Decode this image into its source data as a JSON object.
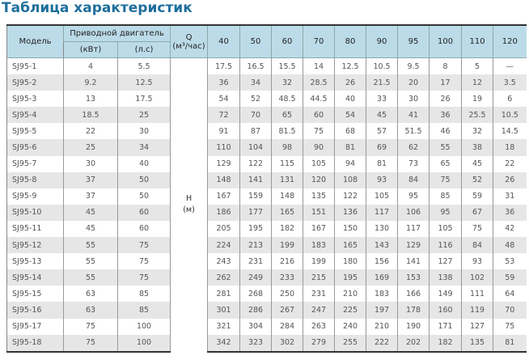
{
  "title": "Таблица характеристик",
  "header": {
    "model": "Модель",
    "motor": "Приводной двигатель",
    "kw": "(кВт)",
    "hp": "(л.с)",
    "q": "Q",
    "q_unit": "(м³/час)",
    "flows": [
      "40",
      "50",
      "60",
      "70",
      "80",
      "90",
      "95",
      "100",
      "110",
      "120"
    ]
  },
  "h_label": "H",
  "h_unit": "(м)",
  "rows": [
    {
      "model": "SJ95-1",
      "kw": "4",
      "hp": "5.5",
      "h": [
        "17.5",
        "16.5",
        "15.5",
        "14",
        "12.5",
        "10.5",
        "9.5",
        "8",
        "5",
        "—"
      ]
    },
    {
      "model": "SJ95-2",
      "kw": "9.2",
      "hp": "12.5",
      "h": [
        "36",
        "34",
        "32",
        "28.5",
        "26",
        "21.5",
        "20",
        "17",
        "12",
        "3.5"
      ]
    },
    {
      "model": "SJ95-3",
      "kw": "13",
      "hp": "17.5",
      "h": [
        "54",
        "52",
        "48.5",
        "44.5",
        "40",
        "33",
        "30",
        "26",
        "19",
        "6"
      ]
    },
    {
      "model": "SJ95-4",
      "kw": "18.5",
      "hp": "25",
      "h": [
        "72",
        "70",
        "65",
        "60",
        "54",
        "45",
        "41",
        "36",
        "25.5",
        "10.5"
      ]
    },
    {
      "model": "SJ95-5",
      "kw": "22",
      "hp": "30",
      "h": [
        "91",
        "87",
        "81.5",
        "75",
        "68",
        "57",
        "51.5",
        "46",
        "32",
        "14.5"
      ]
    },
    {
      "model": "SJ95-6",
      "kw": "25",
      "hp": "34",
      "h": [
        "110",
        "104",
        "98",
        "90",
        "81",
        "69",
        "62",
        "55",
        "38",
        "18"
      ]
    },
    {
      "model": "SJ95-7",
      "kw": "30",
      "hp": "40",
      "h": [
        "129",
        "122",
        "115",
        "105",
        "94",
        "81",
        "73",
        "65",
        "45",
        "22"
      ]
    },
    {
      "model": "SJ95-8",
      "kw": "37",
      "hp": "50",
      "h": [
        "148",
        "141",
        "131",
        "120",
        "108",
        "93",
        "84",
        "75",
        "52",
        "26"
      ]
    },
    {
      "model": "SJ95-9",
      "kw": "37",
      "hp": "50",
      "h": [
        "167",
        "159",
        "148",
        "135",
        "122",
        "105",
        "95",
        "85",
        "59",
        "31"
      ]
    },
    {
      "model": "SJ95-10",
      "kw": "45",
      "hp": "60",
      "h": [
        "186",
        "177",
        "165",
        "151",
        "136",
        "117",
        "106",
        "95",
        "67",
        "36"
      ]
    },
    {
      "model": "SJ95-11",
      "kw": "45",
      "hp": "60",
      "h": [
        "205",
        "195",
        "182",
        "167",
        "150",
        "130",
        "117",
        "105",
        "75",
        "42"
      ]
    },
    {
      "model": "SJ95-12",
      "kw": "55",
      "hp": "75",
      "h": [
        "224",
        "213",
        "199",
        "183",
        "165",
        "143",
        "129",
        "116",
        "84",
        "48"
      ]
    },
    {
      "model": "SJ95-13",
      "kw": "55",
      "hp": "75",
      "h": [
        "243",
        "231",
        "216",
        "199",
        "180",
        "156",
        "141",
        "127",
        "93",
        "53"
      ]
    },
    {
      "model": "SJ95-14",
      "kw": "55",
      "hp": "75",
      "h": [
        "262",
        "249",
        "233",
        "215",
        "195",
        "169",
        "153",
        "138",
        "102",
        "59"
      ]
    },
    {
      "model": "SJ95-15",
      "kw": "63",
      "hp": "85",
      "h": [
        "281",
        "268",
        "250",
        "231",
        "210",
        "183",
        "166",
        "149",
        "111",
        "64"
      ]
    },
    {
      "model": "SJ95-16",
      "kw": "63",
      "hp": "85",
      "h": [
        "301",
        "286",
        "267",
        "247",
        "225",
        "197",
        "178",
        "160",
        "119",
        "70"
      ]
    },
    {
      "model": "SJ95-17",
      "kw": "75",
      "hp": "100",
      "h": [
        "321",
        "304",
        "284",
        "263",
        "240",
        "210",
        "190",
        "171",
        "127",
        "75"
      ]
    },
    {
      "model": "SJ95-18",
      "kw": "75",
      "hp": "100",
      "h": [
        "342",
        "323",
        "302",
        "279",
        "255",
        "222",
        "202",
        "182",
        "135",
        "81"
      ]
    }
  ]
}
